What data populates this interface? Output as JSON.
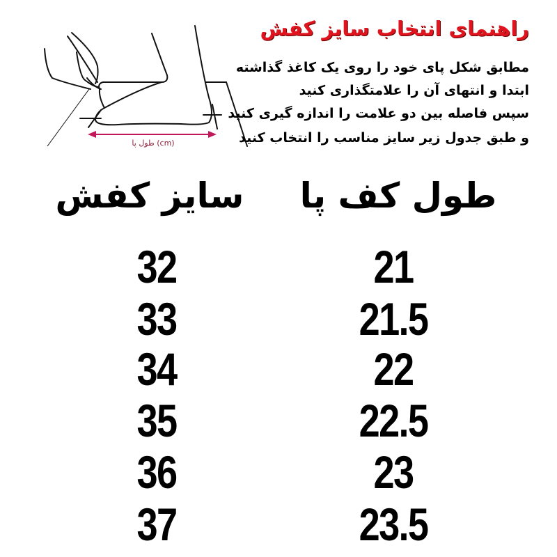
{
  "diagram": {
    "label": "طول پا (cm)",
    "arrow_color": "#c2185b"
  },
  "guide": {
    "title": "راهنمای انتخاب سایز کفش",
    "title_color": "#e0141e",
    "lines": [
      "مطابق شکل پای خود را روی یک کاغذ گذاشته",
      "ابتدا و انتهای آن را علامتگذاری کنید",
      "سپس فاصله بین دو علامت را اندازه گیری کنید",
      "و طبق جدول زیر سایز مناسب را انتخاب کنید"
    ]
  },
  "table": {
    "headers": {
      "shoe_size": "سایز کفش",
      "foot_length": "طول کف پا"
    },
    "rows": [
      {
        "shoe_size": "32",
        "foot_length": "21"
      },
      {
        "shoe_size": "33",
        "foot_length": "21.5"
      },
      {
        "shoe_size": "34",
        "foot_length": "22"
      },
      {
        "shoe_size": "35",
        "foot_length": "22.5"
      },
      {
        "shoe_size": "36",
        "foot_length": "23"
      },
      {
        "shoe_size": "37",
        "foot_length": "23.5"
      }
    ]
  }
}
